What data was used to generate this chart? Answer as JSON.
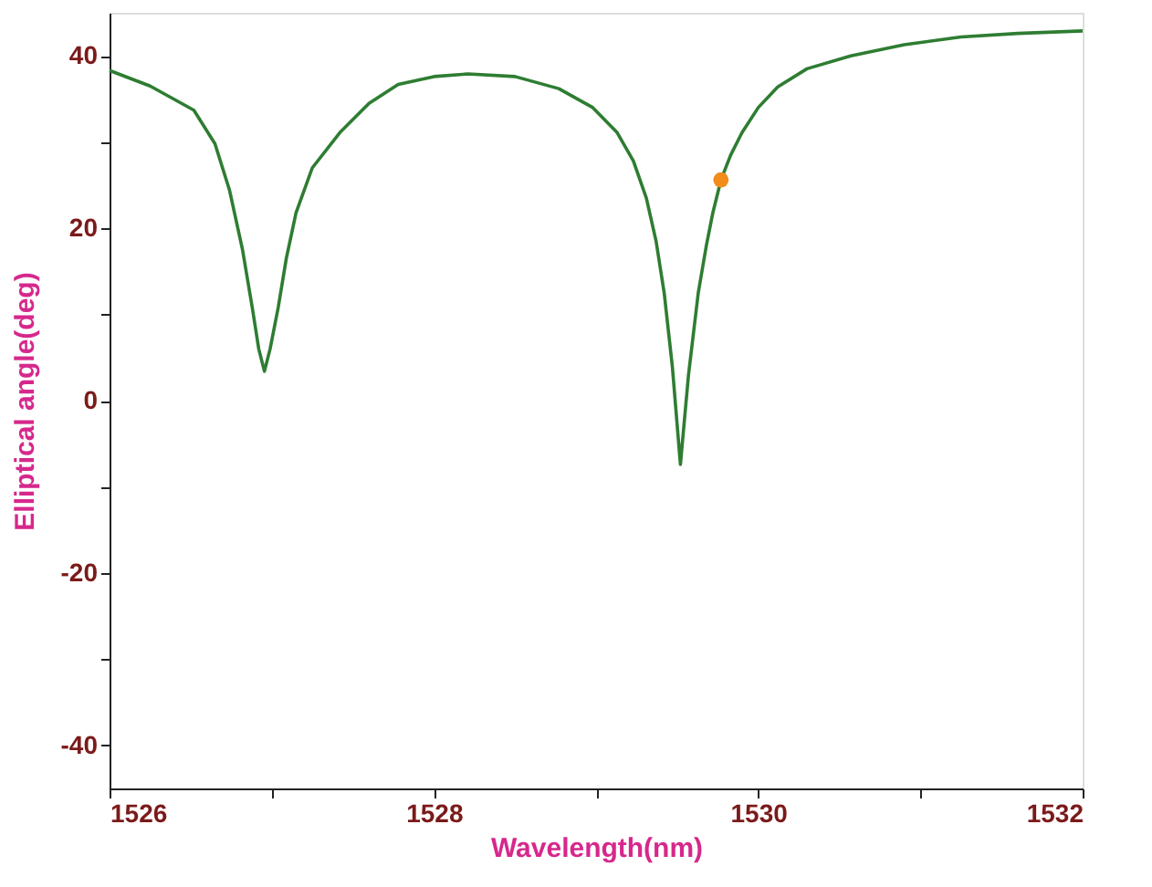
{
  "chart_data": {
    "type": "line",
    "xlabel": "Wavelength(nm)",
    "ylabel": "Elliptical angle(deg)",
    "xlim": [
      1526,
      1532
    ],
    "ylim": [
      -45,
      45
    ],
    "xticks": [
      1526,
      {
        "value": 1527,
        "label": null
      },
      1528,
      {
        "value": 1529,
        "label": null
      },
      1530,
      {
        "value": 1531,
        "label": null
      },
      1532
    ],
    "yticks": [
      -40,
      {
        "value": -30,
        "label": null
      },
      -20,
      {
        "value": -10,
        "label": null
      },
      0,
      {
        "value": 10,
        "label": null
      },
      20,
      {
        "value": 30,
        "label": null
      },
      40
    ],
    "grid": false,
    "marker": "none",
    "line_style": "solid",
    "series": [
      {
        "color": "#2e7d32",
        "x": [
          1526.0,
          1526.25,
          1526.52,
          1526.65,
          1526.74,
          1526.82,
          1526.88,
          1526.92,
          1526.955,
          1526.99,
          1527.04,
          1527.09,
          1527.15,
          1527.25,
          1527.42,
          1527.6,
          1527.78,
          1528.0,
          1528.21,
          1528.5,
          1528.77,
          1528.98,
          1529.13,
          1529.23,
          1529.31,
          1529.37,
          1529.42,
          1529.47,
          1529.52,
          1529.57,
          1529.63,
          1529.68,
          1529.72,
          1529.77,
          1529.83,
          1529.9,
          1530.0,
          1530.12,
          1530.3,
          1530.57,
          1530.9,
          1531.25,
          1531.6,
          1532.0
        ],
        "values": [
          38.3,
          36.5,
          33.7,
          29.8,
          24.4,
          17.5,
          10.8,
          6.0,
          3.4,
          6.0,
          10.8,
          16.5,
          21.8,
          27.0,
          31.1,
          34.5,
          36.7,
          37.6,
          37.9,
          37.6,
          36.2,
          34.0,
          31.1,
          27.8,
          23.5,
          18.5,
          12.5,
          4.0,
          -7.4,
          3.0,
          12.5,
          18.0,
          21.8,
          25.6,
          28.5,
          31.1,
          34.0,
          36.4,
          38.5,
          40.0,
          41.3,
          42.2,
          42.6,
          42.9
        ]
      },
      {
        "type": "scatter",
        "color": "#f28c1a",
        "marker": "circle",
        "x": [
          1529.77
        ],
        "values": [
          25.6
        ]
      }
    ]
  }
}
